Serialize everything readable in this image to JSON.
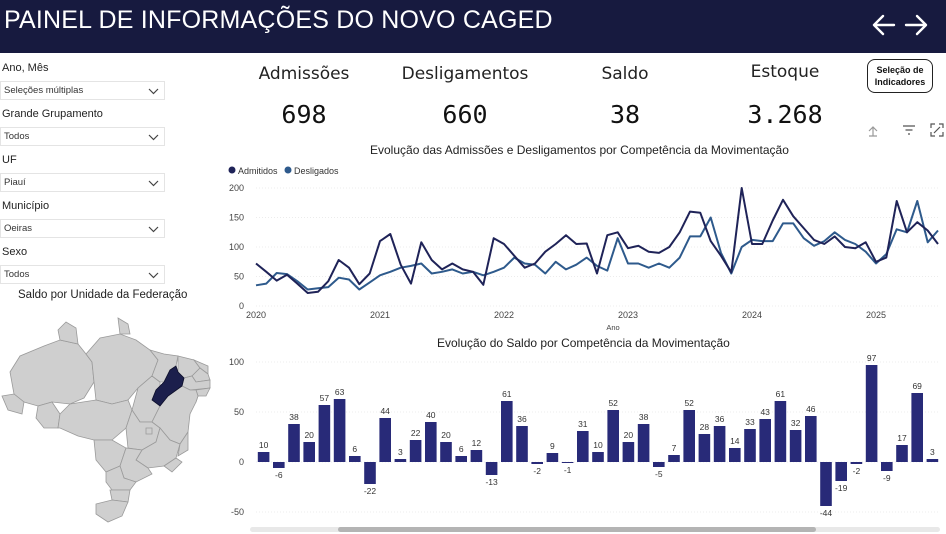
{
  "header": {
    "title": "PAINEL DE INFORMAÇÕES DO NOVO CAGED",
    "back_icon": "arrow-left-icon",
    "forward_icon": "arrow-right-icon"
  },
  "filters": [
    {
      "label": "Ano, Mês",
      "value": "Seleções múltiplas"
    },
    {
      "label": "Grande Grupamento",
      "value": "Todos"
    },
    {
      "label": "UF",
      "value": "Piauí"
    },
    {
      "label": "Município",
      "value": "Oeiras"
    },
    {
      "label": "Sexo",
      "value": "Todos"
    }
  ],
  "map": {
    "title": "Saldo por Unidade da Federação",
    "highlight_color": "#1c1f4c",
    "base_color": "#cfcfcf"
  },
  "kpis": [
    {
      "label": "Admissões",
      "value": "698"
    },
    {
      "label": "Desligamentos",
      "value": "660"
    },
    {
      "label": "Saldo",
      "value": "38"
    },
    {
      "label": "Estoque",
      "value": "3.268"
    }
  ],
  "selection_button": {
    "line1": "Seleção de",
    "line2": "Indicadores"
  },
  "colors": {
    "header_bg": "#171a3f",
    "admitidos": "#1f2358",
    "desligados": "#2e5a8c",
    "bar": "#282a78"
  },
  "line_chart": {
    "title": "Evolução das Admissões e Desligamentos por Competência da Movimentação",
    "xlabel": "Ano",
    "legend": [
      "Admitidos",
      "Desligados"
    ],
    "chart_data": {
      "type": "line",
      "ylim": [
        0,
        200
      ],
      "yticks": [
        "0",
        "50",
        "100",
        "150",
        "200"
      ],
      "xticks": [
        "2020",
        "2021",
        "2022",
        "2023",
        "2024",
        "2025"
      ],
      "start_year": 2020,
      "series": [
        {
          "name": "Admitidos",
          "values": [
            72,
            58,
            43,
            53,
            38,
            22,
            24,
            42,
            78,
            65,
            37,
            55,
            110,
            122,
            70,
            38,
            108,
            78,
            62,
            72,
            62,
            58,
            36,
            115,
            105,
            85,
            65,
            72,
            92,
            105,
            120,
            105,
            106,
            55,
            120,
            125,
            98,
            102,
            92,
            90,
            100,
            125,
            160,
            158,
            110,
            85,
            57,
            200,
            105,
            105,
            145,
            180,
            152,
            132,
            112,
            105,
            118,
            100,
            98,
            108,
            75,
            82,
            178,
            125,
            142,
            128,
            105
          ],
          "note_sparse": ""
        },
        {
          "name": "Desligados",
          "values": [
            35,
            38,
            56,
            54,
            42,
            28,
            30,
            32,
            48,
            45,
            28,
            40,
            52,
            58,
            65,
            68,
            72,
            55,
            58,
            62,
            55,
            58,
            52,
            58,
            65,
            82,
            72,
            70,
            55,
            75,
            62,
            70,
            82,
            68,
            60,
            115,
            72,
            72,
            65,
            72,
            65,
            82,
            118,
            118,
            150,
            90,
            55,
            100,
            112,
            110,
            110,
            140,
            140,
            115,
            102,
            110,
            125,
            112,
            105,
            92,
            72,
            88,
            130,
            125,
            178,
            108,
            128
          ]
        }
      ]
    }
  },
  "bar_chart": {
    "title": "Evolução do Saldo por Competência da Movimentação",
    "chart_data": {
      "type": "bar",
      "ylim": [
        -50,
        100
      ],
      "yticks": [
        "100",
        "50",
        "0",
        "-50"
      ],
      "values": [
        10,
        -6,
        38,
        20,
        57,
        63,
        6,
        -22,
        44,
        3,
        22,
        40,
        20,
        6,
        12,
        -13,
        61,
        36,
        -2,
        9,
        -1,
        31,
        10,
        52,
        20,
        38,
        -5,
        7,
        52,
        28,
        36,
        14,
        33,
        43,
        61,
        32,
        46,
        -44,
        -19,
        -2,
        97,
        -9,
        17,
        69,
        3
      ]
    }
  }
}
